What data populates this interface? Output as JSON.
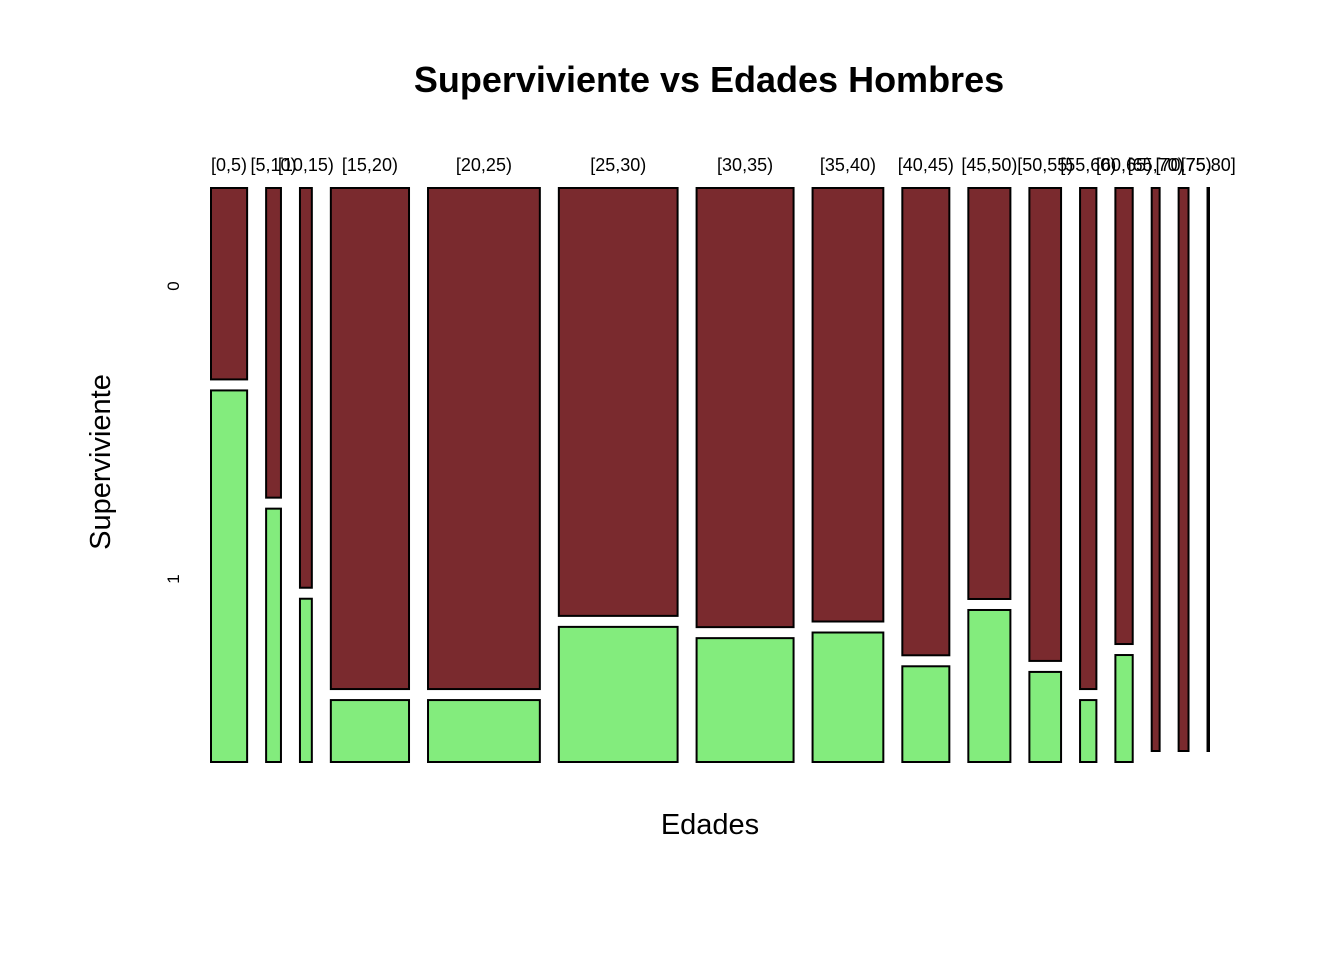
{
  "chart_data": {
    "type": "mosaic",
    "title": "Superviviente vs Edades Hombres",
    "xlabel": "Edades",
    "ylabel": "Superviviente",
    "row_levels": [
      "0",
      "1"
    ],
    "colors": {
      "0": "#7a2a2e",
      "1": "#83ec7d",
      "border": "#000000"
    },
    "categories": [
      {
        "label": "[0,5)",
        "share": 0.0365,
        "prop_0": 0.34
      },
      {
        "label": "[5,10)",
        "share": 0.015,
        "prop_0": 0.55
      },
      {
        "label": "[10,15)",
        "share": 0.012,
        "prop_0": 0.71
      },
      {
        "label": "[15,20)",
        "share": 0.079,
        "prop_0": 0.89
      },
      {
        "label": "[20,25)",
        "share": 0.113,
        "prop_0": 0.89
      },
      {
        "label": "[25,30)",
        "share": 0.12,
        "prop_0": 0.76
      },
      {
        "label": "[30,35)",
        "share": 0.098,
        "prop_0": 0.78
      },
      {
        "label": "[35,40)",
        "share": 0.0715,
        "prop_0": 0.77
      },
      {
        "label": "[40,45)",
        "share": 0.0475,
        "prop_0": 0.83
      },
      {
        "label": "[45,50)",
        "share": 0.0425,
        "prop_0": 0.73
      },
      {
        "label": "[50,55)",
        "share": 0.032,
        "prop_0": 0.84
      },
      {
        "label": "[55,60)",
        "share": 0.0165,
        "prop_0": 0.89
      },
      {
        "label": "[60,65)",
        "share": 0.0175,
        "prop_0": 0.81
      },
      {
        "label": "[65,70)",
        "share": 0.008,
        "prop_0": 1.0
      },
      {
        "label": "[70,75)",
        "share": 0.01,
        "prop_0": 1.0
      },
      {
        "label": "[75,80]",
        "share": 0.0015,
        "prop_0": 1.0
      }
    ]
  }
}
